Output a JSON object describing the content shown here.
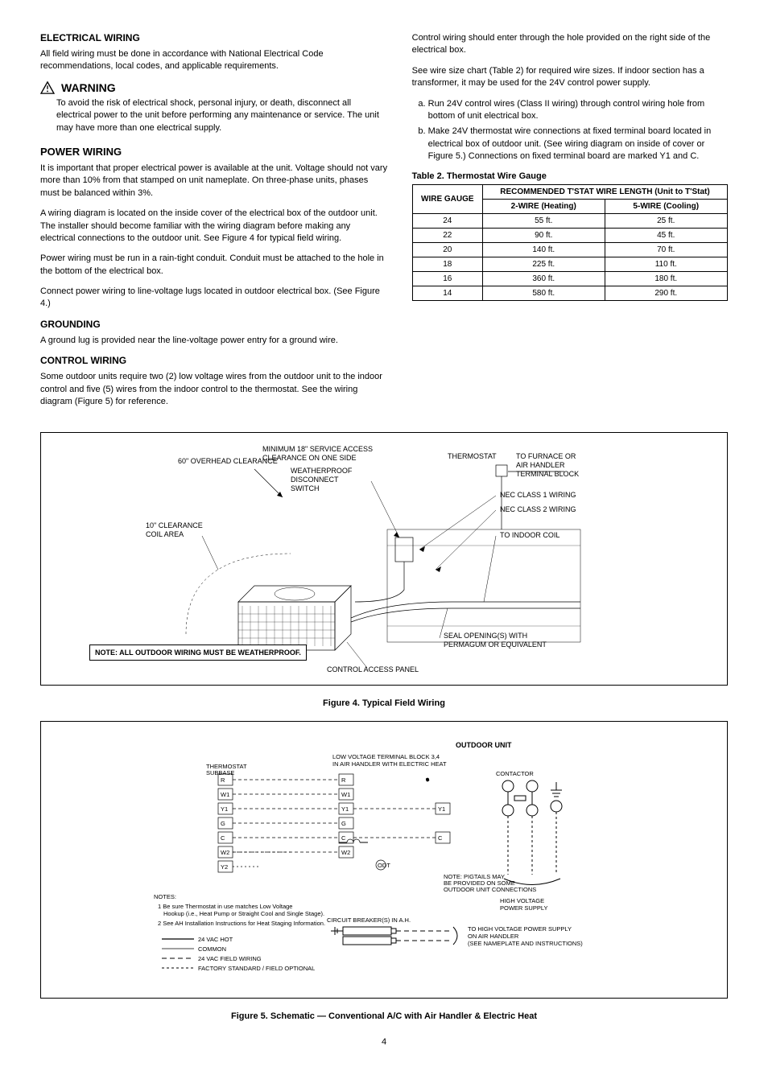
{
  "left": {
    "sec1_title": "ELECTRICAL WIRING",
    "sec1_p1": "All field wiring must be done in accordance with National Electrical Code recommendations, local codes, and applicable requirements.",
    "warn_title": "WARNING",
    "warn_body": "To avoid the risk of electrical shock, personal injury, or death, disconnect all electrical power to the unit before performing any maintenance or service. The unit may have more than one electrical supply.",
    "sec2_title": "POWER WIRING",
    "sec2_p1": "It is important that proper electrical power is available at the unit. Voltage should not vary more than 10% from that stamped on unit nameplate. On three-phase units, phases must be balanced within 3%.",
    "sec2_p2": "A wiring diagram is located on the inside cover of the electrical box of the outdoor unit. The installer should become familiar with the wiring diagram before making any electrical connections to the outdoor unit. See Figure 4 for typical field wiring.",
    "sec2_p3": "Power wiring must be run in a rain-tight conduit. Conduit must be attached to the hole in the bottom of the electrical box.",
    "sec2_p4": "Connect power wiring to line-voltage lugs located in outdoor electrical box. (See Figure 4.)",
    "sec3_title": "GROUNDING",
    "sec3_p1": "A ground lug is provided near the line-voltage power entry for a ground wire.",
    "sec4_title": "CONTROL WIRING",
    "sec4_p1": "Some outdoor units require two (2) low voltage wires from the outdoor unit to the indoor control and five (5) wires from the indoor control to the thermostat. See the wiring diagram (Figure 5) for reference."
  },
  "right": {
    "p1": "Control wiring should enter through the hole provided on the right side of the electrical box.",
    "p2": "See wire size chart (Table 2) for required wire sizes. If indoor section has a transformer, it may be used for the 24V control power supply.",
    "li_a": "Run 24V control wires (Class II wiring) through control wiring hole from bottom of unit electrical box.",
    "li_b": "Make 24V thermostat wire connections at fixed terminal board located in electrical box of outdoor unit. (See wiring diagram on inside of cover or Figure 5.) Connections on fixed terminal board are marked Y1 and C.",
    "tbl_caption": "Table 2. Thermostat Wire Gauge",
    "tbl_head1": "WIRE GAUGE",
    "tbl_head2": "RECOMMENDED T'STAT WIRE LENGTH (Unit to T'Stat)",
    "tbl_sub1": "2-WIRE (Heating)",
    "tbl_sub2": "5-WIRE (Cooling)",
    "rows": [
      [
        "24",
        "55 ft.",
        "25 ft."
      ],
      [
        "22",
        "90 ft.",
        "45 ft."
      ],
      [
        "20",
        "140 ft.",
        "70 ft."
      ],
      [
        "18",
        "225 ft.",
        "110 ft."
      ],
      [
        "16",
        "360 ft.",
        "180 ft."
      ],
      [
        "14",
        "580 ft.",
        "290 ft."
      ]
    ]
  },
  "fig4": {
    "caption": "Figure 4. Typical Field Wiring",
    "note": "NOTE: ALL OUTDOOR WIRING MUST BE WEATHERPROOF.",
    "labels": {
      "overhead": "60\" OVERHEAD CLEARANCE",
      "service": "MINIMUM 18\" SERVICE ACCESS CLEARANCE ON ONE SIDE",
      "disconnect": "WEATHERPROOF DISCONNECT SWITCH",
      "thermostat": "THERMOSTAT",
      "furnace": "TO FURNACE OR AIR HANDLER TERMINAL BLOCK",
      "nec1": "NEC CLASS 1 WIRING",
      "nec2": "NEC CLASS 2 WIRING",
      "coil_clear": "10\" CLEARANCE COIL AREA",
      "indoor_coil": "TO INDOOR COIL",
      "access_panel": "CONTROL ACCESS PANEL",
      "seal": "SEAL OPENING(S) WITH PERMAGUM OR EQUIVALENT"
    },
    "colors": {
      "border": "#000000",
      "line": "#000000",
      "bg": "#ffffff"
    }
  },
  "fig5": {
    "caption": "Figure 5. Schematic — Conventional A/C with Air Handler & Electric Heat",
    "outdoor_title": "OUTDOOR UNIT",
    "lv_block": "LOW VOLTAGE TERMINAL BLOCK 3,4 IN AIR HANDLER WITH ELECTRIC HEAT",
    "thermostat_label": "THERMOSTAT SUBBASE",
    "terms_left": [
      "R",
      "W1",
      "Y1",
      "G",
      "C",
      "W2",
      "Y2"
    ],
    "terms_mid": [
      "R",
      "W1",
      "Y1",
      "G",
      "C",
      "W2"
    ],
    "terms_right": [
      "Y1",
      "C"
    ],
    "notes": {
      "n1": "Be sure Thermostat in use matches Low Voltage Hookup (i.e., Heat Pump or Straight Cool and Single Stage).",
      "n2": "See AH Installation Instructions for Heat Staging Information.",
      "legend1": "24 VAC HOT",
      "legend2": "COMMON",
      "legend3": "24 VAC FIELD WIRING",
      "legend4": "FACTORY STANDARD",
      "legend5": "FIELD OPTIONAL",
      "pigtails": "NOTE: PIGTAILS MAY BE PROVIDED ON SOME OUTDOOR UNIT CONNECTIONS",
      "hv": "HIGH VOLTAGE POWER SUPPLY",
      "cb": "CIRCUIT BREAKER(S) IN A.H.",
      "hv_ah": "TO HIGH VOLTAGE POWER SUPPLY ON AIR HANDLER (SEE NAMEPLATE AND INSTRUCTIONS)"
    },
    "contactor": "CONTACTOR",
    "colors": {
      "border": "#000000",
      "dash": "#000000",
      "bg": "#ffffff"
    }
  },
  "page_number": "4"
}
